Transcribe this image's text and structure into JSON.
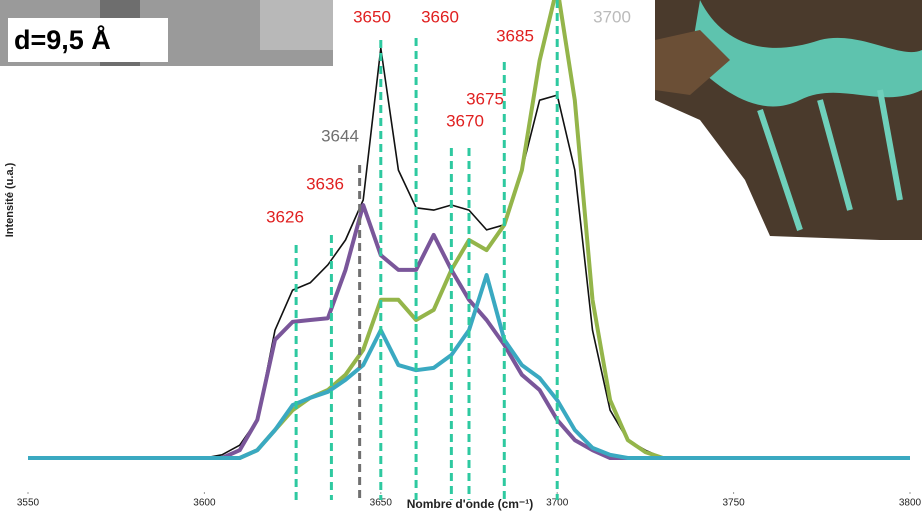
{
  "chart_data": {
    "type": "line",
    "xlabel": "Nombre d'onde (cm⁻¹)",
    "ylabel": "Intensité (u.a.)",
    "inset_label": "d=9,5 Å",
    "xlim": [
      3550,
      3800
    ],
    "xticks": [
      3550,
      3600,
      3650,
      3700,
      3750,
      3800
    ],
    "ylim": [
      0,
      100
    ],
    "x": [
      3550,
      3555,
      3560,
      3565,
      3570,
      3575,
      3580,
      3585,
      3590,
      3595,
      3600,
      3605,
      3610,
      3615,
      3620,
      3625,
      3630,
      3635,
      3640,
      3645,
      3650,
      3655,
      3660,
      3665,
      3670,
      3675,
      3680,
      3685,
      3690,
      3695,
      3700,
      3705,
      3710,
      3715,
      3720,
      3725,
      3730,
      3735,
      3740,
      3745,
      3750,
      3755,
      3760,
      3765,
      3770,
      3775,
      3780,
      3785,
      3790,
      3795,
      3800
    ],
    "series": [
      {
        "color": "#111111",
        "values": [
          2.6,
          2.6,
          2.6,
          2.6,
          2.6,
          2.6,
          2.6,
          2.6,
          2.6,
          2.6,
          2.6,
          3.3,
          5.4,
          10.9,
          30.4,
          39.1,
          40.7,
          44.6,
          50,
          58.7,
          91.7,
          65.2,
          57,
          56.5,
          57.6,
          56.5,
          52.2,
          53.3,
          65.2,
          80.4,
          81.5,
          65.2,
          30.4,
          13,
          6.5,
          4.3,
          2.6,
          2.6,
          2.6,
          2.6,
          2.6,
          2.6,
          2.6,
          2.6,
          2.6,
          2.6,
          2.6,
          2.6,
          2.6,
          2.6,
          2.6
        ]
      },
      {
        "color": "#94b54a",
        "values": [
          2.6,
          2.6,
          2.6,
          2.6,
          2.6,
          2.6,
          2.6,
          2.6,
          2.6,
          2.6,
          2.6,
          2.6,
          2.6,
          4.3,
          8.7,
          13,
          15.7,
          17.4,
          20.7,
          26.1,
          37,
          37,
          32.6,
          34.8,
          43.5,
          50,
          47.8,
          53.3,
          65.2,
          89,
          105,
          80.4,
          37,
          15.2,
          6.5,
          3.9,
          2.6,
          2.6,
          2.6,
          2.6,
          2.6,
          2.6,
          2.6,
          2.6,
          2.6,
          2.6,
          2.6,
          2.6,
          2.6,
          2.6,
          2.6
        ]
      },
      {
        "color": "#7a569a",
        "values": [
          2.6,
          2.6,
          2.6,
          2.6,
          2.6,
          2.6,
          2.6,
          2.6,
          2.6,
          2.6,
          2.6,
          2.6,
          4.3,
          10.9,
          28.3,
          32.2,
          32.6,
          33,
          43.5,
          57.6,
          46.7,
          43.5,
          43.5,
          51.1,
          43.5,
          37,
          32.6,
          27.2,
          20.7,
          17.4,
          10.9,
          6.5,
          4.3,
          2.6,
          2.6,
          2.6,
          2.6,
          2.6,
          2.6,
          2.6,
          2.6,
          2.6,
          2.6,
          2.6,
          2.6,
          2.6,
          2.6,
          2.6,
          2.6,
          2.6,
          2.6
        ]
      },
      {
        "color": "#3aa9c1",
        "values": [
          2.6,
          2.6,
          2.6,
          2.6,
          2.6,
          2.6,
          2.6,
          2.6,
          2.6,
          2.6,
          2.6,
          2.6,
          2.6,
          4.3,
          8.7,
          14.1,
          15.7,
          17,
          19.6,
          22.8,
          30.4,
          22.8,
          21.7,
          22.2,
          25,
          30.4,
          42.4,
          28.3,
          22.8,
          20,
          15.2,
          8.7,
          4.8,
          3.3,
          2.6,
          2.6,
          2.6,
          2.6,
          2.6,
          2.6,
          2.6,
          2.6,
          2.6,
          2.6,
          2.6,
          2.6,
          2.6,
          2.6,
          2.6,
          2.6,
          2.6
        ]
      }
    ],
    "peaks": [
      {
        "value": 3626,
        "color": "#e02020",
        "line_color": "#2ec9a0"
      },
      {
        "value": 3636,
        "color": "#e02020",
        "line_color": "#2ec9a0"
      },
      {
        "value": 3644,
        "color": "#707070",
        "line_color": "#707070"
      },
      {
        "value": 3650,
        "color": "#e02020",
        "line_color": "#2ec9a0"
      },
      {
        "value": 3660,
        "color": "#e02020",
        "line_color": "#2ec9a0"
      },
      {
        "value": 3670,
        "color": "#e02020",
        "line_color": "#2ec9a0"
      },
      {
        "value": 3675,
        "color": "#e02020",
        "line_color": "#2ec9a0"
      },
      {
        "value": 3685,
        "color": "#e02020",
        "line_color": "#2ec9a0"
      },
      {
        "value": 3700,
        "color": "#bbbbbb",
        "line_color": "#2ec9a0"
      }
    ]
  }
}
